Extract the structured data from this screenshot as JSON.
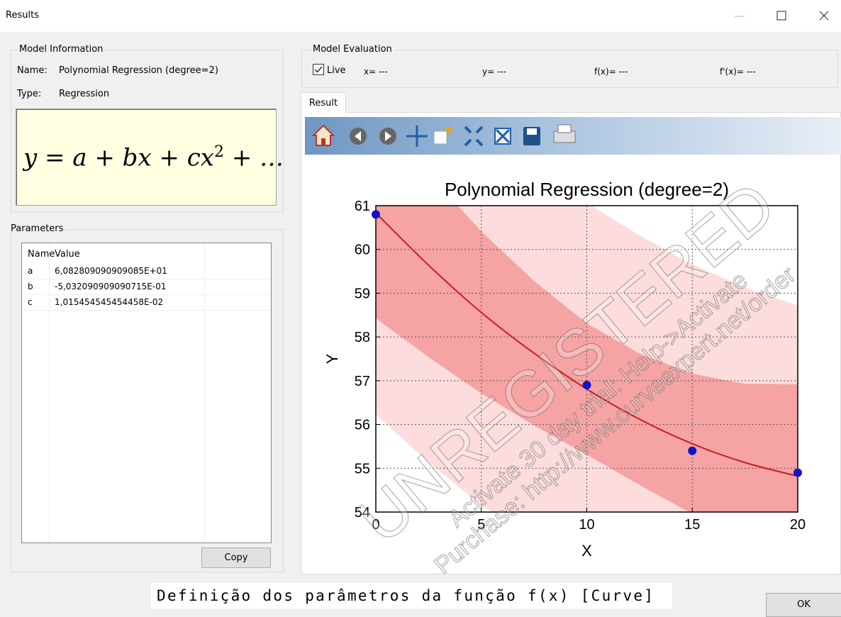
{
  "window": {
    "title": "Results",
    "ok_button": "OK"
  },
  "model_information": {
    "title": "Model Information",
    "name_label": "Name:",
    "name": "Polynomial Regression (degree=2)",
    "type_label": "Type:",
    "type": "Regression",
    "formula": {
      "base": "y = a + bx + cx",
      "exponent": "2",
      "tail": " + …"
    }
  },
  "parameters": {
    "title": "Parameters",
    "columns": [
      "Name",
      "Value"
    ],
    "rows": [
      [
        "a",
        "6,082809090909085E+01"
      ],
      [
        "b",
        "-5,032090909090715E-01"
      ],
      [
        "c",
        "1,015454545454458E-02"
      ]
    ],
    "copy_button": "Copy"
  },
  "model_evaluation": {
    "title": "Model Evaluation",
    "live": "Live",
    "fields": [
      "x= ---",
      "y= ---",
      "f(x)= ---",
      "f'(x)= ---"
    ]
  },
  "tab": "Result",
  "chart_data": {
    "type": "regression",
    "title": "Polynomial Regression (degree=2)",
    "x_label": "X",
    "y_label": "Y",
    "xlim": [
      0,
      20
    ],
    "ylim": [
      54,
      61
    ],
    "xticks": [
      0,
      5,
      10,
      15,
      20
    ],
    "yticks": [
      54,
      55,
      56,
      57,
      58,
      59,
      60,
      61
    ],
    "grid": true,
    "points": {
      "color": "#1414c8",
      "x": [
        0,
        10,
        15,
        20
      ],
      "values": [
        60.8,
        56.9,
        55.4,
        54.9
      ]
    },
    "fit": {
      "color": "#c81e1e",
      "x": [
        0,
        2.5,
        5,
        7.5,
        10,
        12.5,
        15,
        17.5,
        20
      ],
      "values": [
        60.83,
        59.64,
        58.56,
        57.63,
        56.81,
        56.12,
        55.56,
        55.13,
        54.82
      ]
    },
    "prediction_band": {
      "color": "#fcdcdc",
      "x": [
        0,
        2.5,
        5,
        7.5,
        10,
        12.5,
        15,
        17.5,
        20
      ],
      "upper": [
        65.43,
        64.14,
        62.96,
        61.93,
        61.06,
        60.32,
        59.66,
        59.13,
        58.72
      ],
      "lower": [
        56.23,
        55.14,
        54.16,
        53.33,
        52.56,
        51.92,
        51.46,
        51.13,
        50.92
      ]
    },
    "confidence_band": {
      "color": "#f5a3a3",
      "x": [
        0,
        2.5,
        5,
        7.5,
        10,
        12.5,
        15,
        17.5,
        20
      ],
      "upper": [
        63.23,
        61.74,
        60.41,
        59.28,
        58.31,
        57.62,
        57.16,
        56.93,
        56.92
      ],
      "lower": [
        58.43,
        57.54,
        56.71,
        55.98,
        55.31,
        54.62,
        53.96,
        53.33,
        52.72
      ]
    },
    "watermark": {
      "main": "UNREGISTERED",
      "line1": "Activate 30 day trial: Help->Activate",
      "line2": "Purchase: http://www.curveexpert.net/order"
    }
  },
  "caption": "Definição dos parâmetros da função f(x) [Curve]"
}
